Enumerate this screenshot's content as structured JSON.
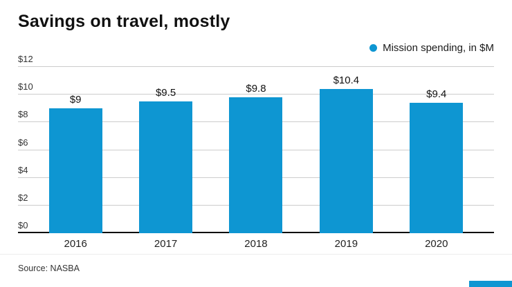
{
  "title": "Savings on travel, mostly",
  "legend": {
    "label": "Mission spending, in $M"
  },
  "source": "Source: NASBA",
  "colors": {
    "bar": "#0e96d2",
    "accent": "#0e96d2",
    "grid": "#cccccc",
    "axis": "#000000"
  },
  "chart_data": {
    "type": "bar",
    "title": "Savings on travel, mostly",
    "categories": [
      "2016",
      "2017",
      "2018",
      "2019",
      "2020"
    ],
    "values": [
      9,
      9.5,
      9.8,
      10.4,
      9.4
    ],
    "value_labels": [
      "$9",
      "$9.5",
      "$9.8",
      "$10.4",
      "$9.4"
    ],
    "xlabel": "",
    "ylabel": "",
    "ylim": [
      0,
      12
    ],
    "yticks": [
      0,
      2,
      4,
      6,
      8,
      10,
      12
    ],
    "ytick_labels": [
      "$0",
      "$2",
      "$4",
      "$6",
      "$8",
      "$10",
      "$12"
    ],
    "legend": [
      "Mission spending, in $M"
    ],
    "legend_position": "top-right",
    "grid": true,
    "source": "Source: NASBA"
  }
}
